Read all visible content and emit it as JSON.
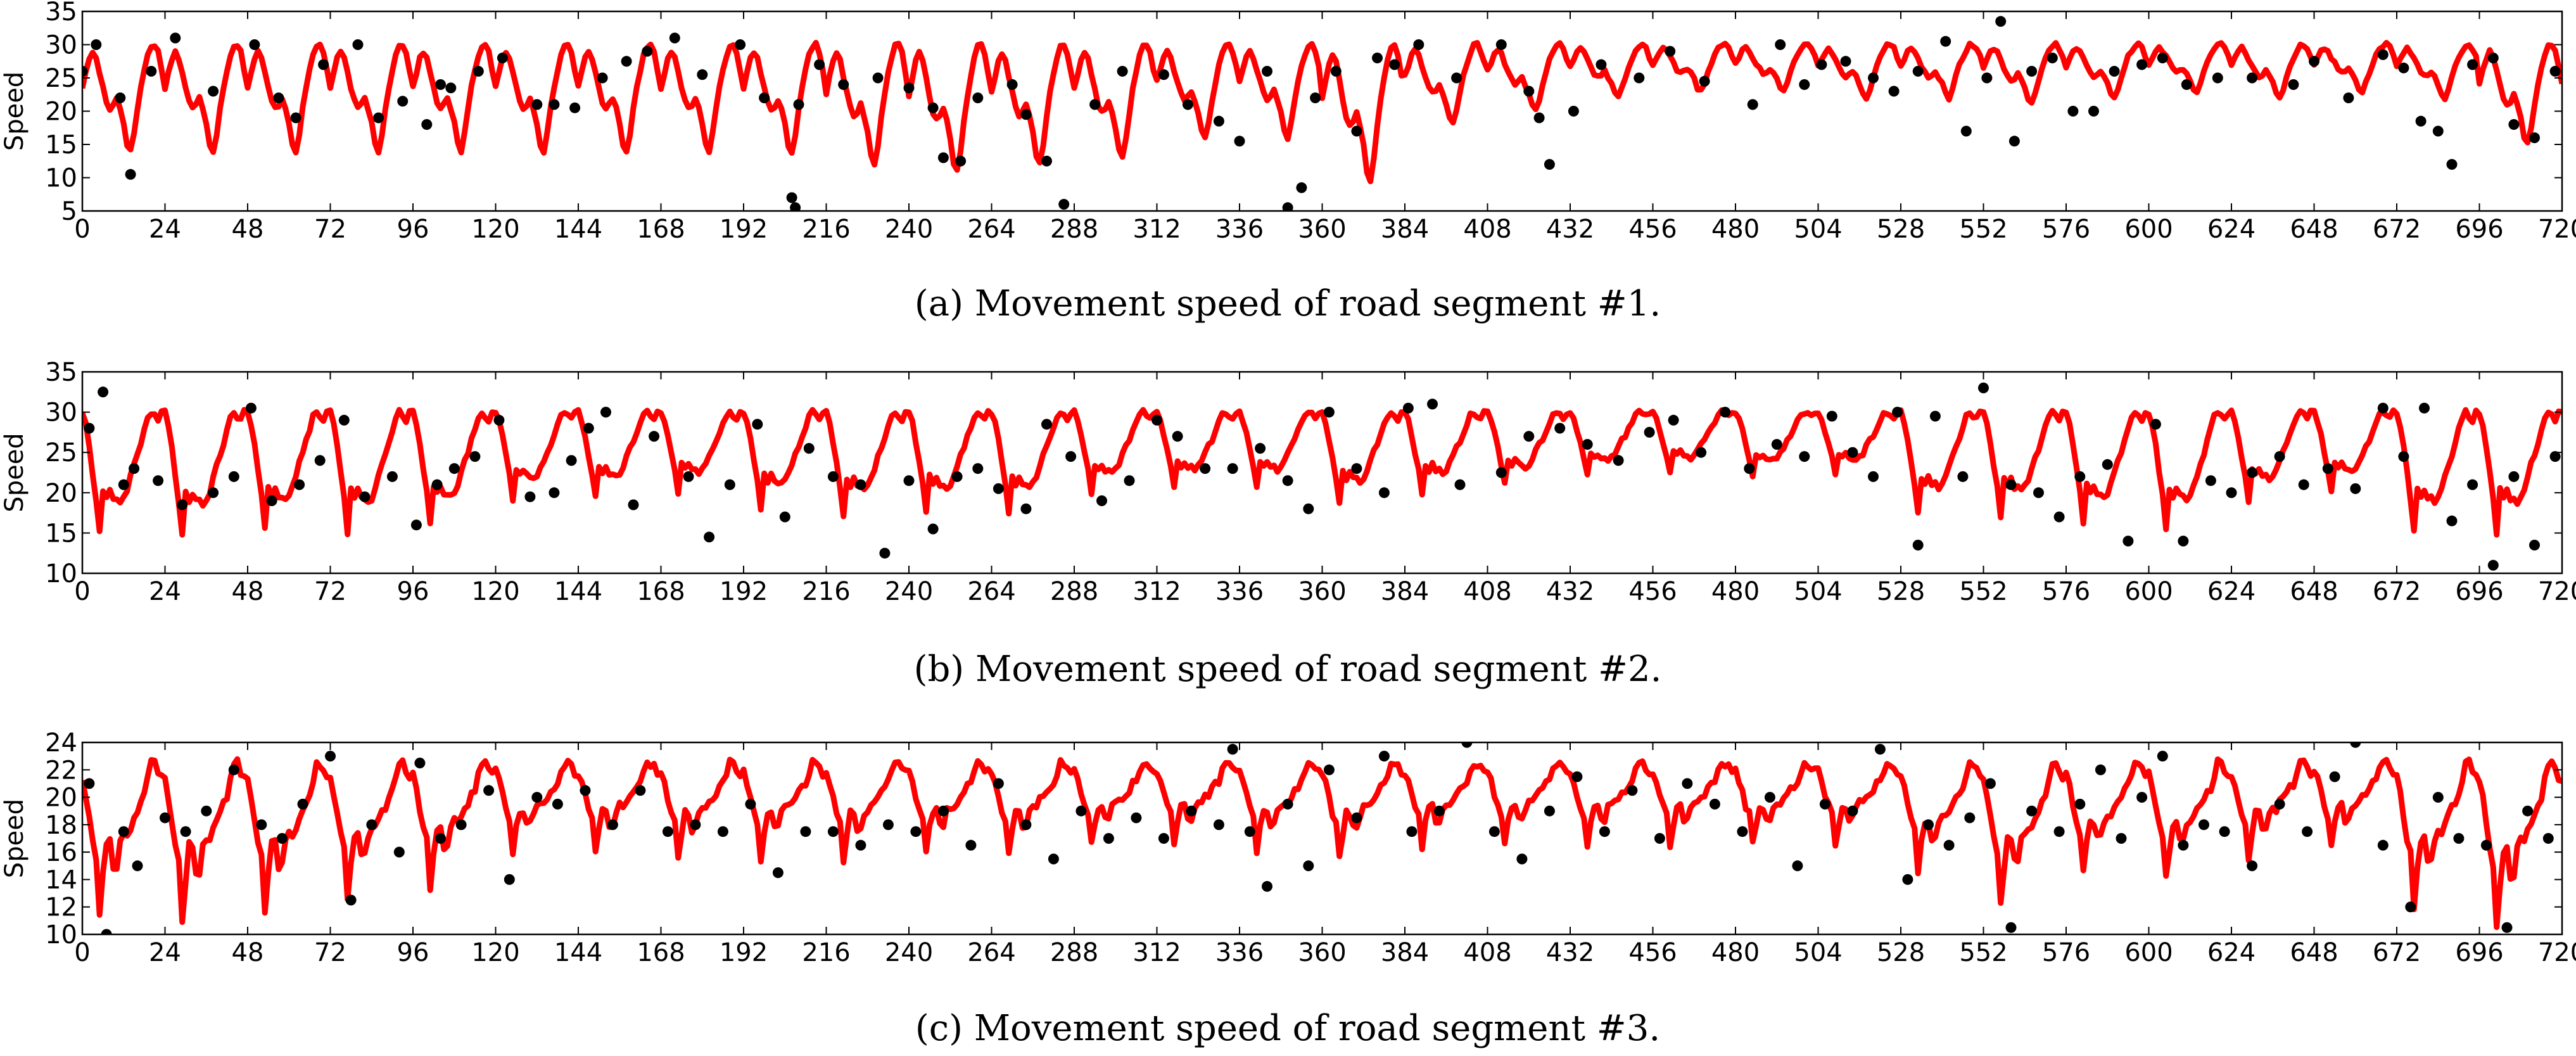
{
  "chart_data": [
    {
      "type": "line",
      "caption": "(a) Movement speed of road segment #1.",
      "ylabel": "Speed",
      "xlabel": "",
      "xlim": [
        0,
        720
      ],
      "ylim": [
        5,
        35
      ],
      "xticks": [
        0,
        24,
        48,
        72,
        96,
        120,
        144,
        168,
        192,
        216,
        240,
        264,
        288,
        312,
        336,
        360,
        384,
        408,
        432,
        456,
        480,
        504,
        528,
        552,
        576,
        600,
        624,
        648,
        672,
        696,
        720
      ],
      "yticks": [
        5,
        10,
        15,
        20,
        25,
        30,
        35
      ],
      "grid": false,
      "series": [
        {
          "kind": "line",
          "color": "#ff0000",
          "daily_profile": [
            24,
            26,
            28,
            29,
            28,
            26,
            24,
            22,
            21,
            21.5,
            22.5,
            21,
            19,
            16,
            15,
            17.5,
            21,
            24,
            26.5,
            28.5,
            29.8,
            30,
            29,
            26.5
          ],
          "profile_scale_min": [
            14,
            14,
            14,
            14,
            14,
            14,
            14,
            14,
            13.5,
            12,
            11,
            12,
            13,
            16,
            16,
            9.5,
            18,
            20,
            22,
            23,
            23,
            22,
            22,
            21,
            22,
            23,
            22,
            23,
            22,
            15
          ],
          "x": [
            0,
            24,
            48,
            72,
            96,
            120,
            144,
            168,
            192,
            216,
            240,
            264,
            288,
            312,
            336,
            360,
            384,
            408,
            432,
            456,
            480,
            504,
            528,
            552,
            576,
            600,
            624,
            648,
            672,
            696,
            720
          ]
        },
        {
          "kind": "scatter",
          "color": "#000000",
          "x": [
            0,
            4,
            11,
            14,
            20,
            27,
            38,
            50,
            57,
            62,
            70,
            80,
            86,
            93,
            100,
            104,
            107,
            115,
            122,
            132,
            137,
            143,
            151,
            158,
            164,
            172,
            180,
            191,
            198,
            206,
            207,
            208,
            214,
            221,
            231,
            240,
            247,
            250,
            255,
            260,
            270,
            274,
            280,
            285,
            294,
            302,
            314,
            321,
            330,
            336,
            344,
            350,
            354,
            358,
            364,
            370,
            376,
            381,
            388,
            399,
            412,
            420,
            423,
            426,
            433,
            441,
            452,
            461,
            471,
            485,
            493,
            500,
            505,
            512,
            520,
            526,
            533,
            541,
            547,
            553,
            557,
            561,
            566,
            572,
            578,
            584,
            590,
            598,
            604,
            611,
            620,
            630,
            642,
            648,
            658,
            668,
            674,
            679,
            684,
            688,
            694,
            700,
            706,
            712,
            718
          ],
          "y": [
            26,
            30,
            22,
            10.5,
            26,
            31,
            23,
            30,
            22,
            19,
            27,
            30,
            19,
            21.5,
            18,
            24,
            23.5,
            26,
            28,
            21,
            21,
            20.5,
            25,
            27.5,
            29,
            31,
            25.5,
            30,
            22,
            7,
            5.5,
            21,
            27,
            24,
            25,
            23.5,
            20.5,
            13,
            12.5,
            22,
            24,
            19.5,
            12.5,
            6,
            21,
            26,
            25.5,
            21,
            18.5,
            15.5,
            26,
            5.5,
            8.5,
            22,
            26,
            17,
            28,
            27,
            30,
            25,
            30,
            23,
            19,
            12,
            20,
            27,
            25,
            29,
            24.5,
            21,
            30,
            24,
            27,
            27.5,
            25,
            23,
            26,
            30.5,
            17,
            25,
            33.5,
            15.5,
            26,
            28,
            20,
            20,
            26,
            27,
            28,
            24,
            25,
            25,
            24,
            27.5,
            22,
            28.5,
            26.5,
            18.5,
            17,
            12,
            27,
            28,
            18,
            16,
            26
          ]
        }
      ]
    },
    {
      "type": "line",
      "caption": "(b) Movement speed of road segment #2.",
      "ylabel": "Speed",
      "xlabel": "",
      "xlim": [
        0,
        720
      ],
      "ylim": [
        10,
        35
      ],
      "xticks": [
        0,
        24,
        48,
        72,
        96,
        120,
        144,
        168,
        192,
        216,
        240,
        264,
        288,
        312,
        336,
        360,
        384,
        408,
        432,
        456,
        480,
        504,
        528,
        552,
        576,
        600,
        624,
        648,
        672,
        696,
        720
      ],
      "yticks": [
        10,
        15,
        20,
        25,
        30,
        35
      ],
      "grid": false,
      "series": [
        {
          "kind": "line",
          "color": "#ff0000",
          "daily_profile": [
            30,
            28.5,
            26,
            23,
            20,
            16,
            21,
            20,
            21,
            20,
            20,
            19.5,
            20,
            21,
            22.5,
            24,
            25,
            26.5,
            28,
            29.5,
            30,
            29.5,
            29,
            30
          ],
          "profile_scale_min": [
            15,
            14.5,
            15.5,
            15,
            16,
            19,
            19.5,
            20,
            18,
            17,
            17.5,
            17.5,
            20,
            20.5,
            20.5,
            18.5,
            20,
            21,
            22,
            22.5,
            22,
            22,
            17.5,
            17,
            16,
            15.5,
            19,
            20,
            15,
            15
          ],
          "x": [
            0,
            24,
            48,
            72,
            96,
            120,
            144,
            168,
            192,
            216,
            240,
            264,
            288,
            312,
            336,
            360,
            384,
            408,
            432,
            456,
            480,
            504,
            528,
            552,
            576,
            600,
            624,
            648,
            672,
            696,
            720
          ]
        },
        {
          "kind": "scatter",
          "color": "#000000",
          "x": [
            2,
            6,
            12,
            15,
            22,
            29,
            38,
            44,
            49,
            55,
            63,
            69,
            76,
            82,
            90,
            97,
            103,
            108,
            114,
            121,
            130,
            137,
            142,
            147,
            152,
            160,
            166,
            176,
            182,
            188,
            196,
            204,
            211,
            218,
            226,
            233,
            240,
            247,
            254,
            260,
            266,
            274,
            280,
            287,
            296,
            304,
            312,
            318,
            326,
            334,
            342,
            350,
            356,
            362,
            370,
            378,
            385,
            392,
            400,
            412,
            420,
            429,
            437,
            446,
            455,
            462,
            470,
            477,
            484,
            492,
            500,
            508,
            514,
            520,
            527,
            533,
            538,
            546,
            552,
            560,
            568,
            574,
            580,
            588,
            594,
            602,
            610,
            618,
            624,
            630,
            638,
            645,
            652,
            660,
            668,
            674,
            680,
            688,
            694,
            700,
            706,
            712,
            718
          ],
          "y": [
            28,
            32.5,
            21,
            23,
            21.5,
            18.5,
            20,
            22,
            30.5,
            19,
            21,
            24,
            29,
            19.5,
            22,
            16,
            21,
            23,
            24.5,
            29,
            19.5,
            20,
            24,
            28,
            30,
            18.5,
            27,
            22,
            14.5,
            21,
            28.5,
            17,
            25.5,
            22,
            21,
            12.5,
            21.5,
            15.5,
            22,
            23,
            20.5,
            18,
            28.5,
            24.5,
            19,
            21.5,
            29,
            27,
            23,
            23,
            25.5,
            21.5,
            18,
            30,
            23,
            20,
            30.5,
            31,
            21,
            22.5,
            27,
            28,
            26,
            24,
            27.5,
            29,
            25,
            30,
            23,
            26,
            24.5,
            29.5,
            25,
            22,
            30,
            13.5,
            29.5,
            22,
            33,
            21,
            20,
            17,
            22,
            23.5,
            14,
            28.5,
            14,
            21.5,
            20,
            22.5,
            24.5,
            21,
            23,
            20.5,
            30.5,
            24.5,
            30.5,
            16.5,
            21,
            11,
            22,
            13.5,
            24.5
          ]
        }
      ]
    },
    {
      "type": "line",
      "caption": "(c) Movement speed of road segment #3.",
      "ylabel": "Speed",
      "xlabel": "",
      "xlim": [
        0,
        720
      ],
      "ylim": [
        10,
        24
      ],
      "xticks": [
        0,
        24,
        48,
        72,
        96,
        120,
        144,
        168,
        192,
        216,
        240,
        264,
        288,
        312,
        336,
        360,
        384,
        408,
        432,
        456,
        480,
        504,
        528,
        552,
        576,
        600,
        624,
        648,
        672,
        696,
        720
      ],
      "yticks": [
        10,
        12,
        14,
        16,
        18,
        20,
        22,
        24
      ],
      "grid": false,
      "series": [
        {
          "kind": "line",
          "color": "#ff0000",
          "daily_profile": [
            21.5,
            20.5,
            19,
            17.5,
            16.5,
            13,
            15.5,
            17.5,
            17.5,
            16,
            16,
            17.5,
            18,
            18,
            18.5,
            19,
            19.5,
            20,
            20.5,
            21.5,
            22.5,
            22.5,
            22,
            21.5
          ],
          "profile_scale_min": [
            11.5,
            11,
            11.5,
            12.5,
            13.5,
            16,
            16,
            15.5,
            15.5,
            15.5,
            16,
            16,
            16.5,
            16.5,
            16,
            15.5,
            16.5,
            16.5,
            16.5,
            16.5,
            16.5,
            16.5,
            14.5,
            12,
            14.5,
            14,
            15.5,
            16.5,
            12,
            10.5
          ],
          "x": [
            0,
            24,
            48,
            72,
            96,
            120,
            144,
            168,
            192,
            216,
            240,
            264,
            288,
            312,
            336,
            360,
            384,
            408,
            432,
            456,
            480,
            504,
            528,
            552,
            576,
            600,
            624,
            648,
            672,
            696,
            720
          ]
        },
        {
          "kind": "scatter",
          "color": "#000000",
          "x": [
            2,
            7,
            12,
            16,
            24,
            30,
            36,
            44,
            52,
            58,
            64,
            72,
            78,
            84,
            92,
            98,
            104,
            110,
            118,
            124,
            132,
            138,
            146,
            154,
            162,
            170,
            178,
            186,
            194,
            202,
            210,
            218,
            226,
            234,
            242,
            250,
            258,
            266,
            274,
            282,
            290,
            298,
            306,
            314,
            322,
            330,
            334,
            339,
            344,
            350,
            356,
            362,
            370,
            378,
            386,
            394,
            402,
            410,
            418,
            426,
            434,
            442,
            450,
            458,
            466,
            474,
            482,
            490,
            498,
            506,
            514,
            522,
            530,
            536,
            542,
            548,
            554,
            560,
            566,
            574,
            580,
            586,
            592,
            598,
            604,
            610,
            616,
            622,
            630,
            638,
            646,
            654,
            660,
            668,
            676,
            684,
            690,
            698,
            704,
            710,
            716
          ],
          "y": [
            21,
            10,
            17.5,
            15,
            18.5,
            17.5,
            19,
            22,
            18,
            17,
            19.5,
            23,
            12.5,
            18,
            16,
            22.5,
            17,
            18,
            20.5,
            14,
            20,
            19.5,
            20.5,
            18,
            20.5,
            17.5,
            18,
            17.5,
            19.5,
            14.5,
            17.5,
            17.5,
            16.5,
            18,
            17.5,
            19,
            16.5,
            21,
            18,
            15.5,
            19,
            17,
            18.5,
            17,
            19,
            18,
            23.5,
            17.5,
            13.5,
            19.5,
            15,
            22,
            18.5,
            23,
            17.5,
            19,
            24,
            17.5,
            15.5,
            19,
            21.5,
            17.5,
            20.5,
            17,
            21,
            19.5,
            17.5,
            20,
            15,
            19.5,
            19,
            23.5,
            14,
            18,
            16.5,
            18.5,
            21,
            10.5,
            19,
            17.5,
            19.5,
            22,
            17,
            20,
            23,
            16.5,
            18,
            17.5,
            15,
            19.5,
            17.5,
            21.5,
            24,
            16.5,
            12,
            20,
            17,
            16.5,
            10.5,
            19,
            17
          ]
        }
      ]
    }
  ]
}
